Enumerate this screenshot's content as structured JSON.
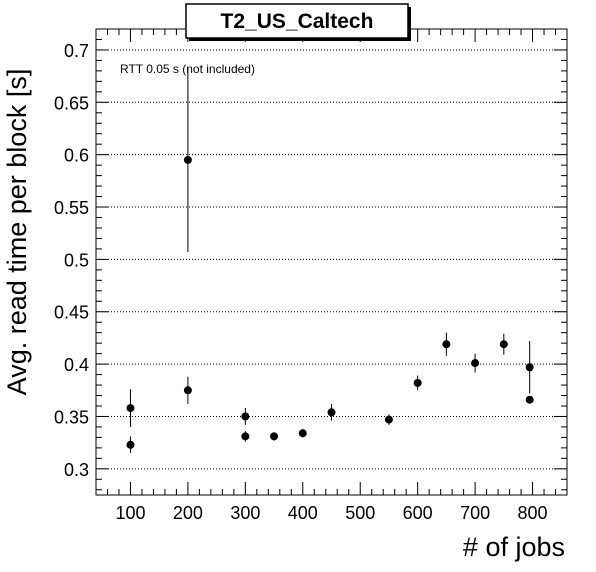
{
  "chart_data": {
    "type": "scatter",
    "title": "T2_US_Caltech",
    "xlabel": "# of jobs",
    "ylabel": "Avg. read time per block [s]",
    "annotation": "RTT 0.05 s (not included)",
    "xlim": [
      40,
      860
    ],
    "ylim": [
      0.275,
      0.72
    ],
    "x_ticks": [
      100,
      200,
      300,
      400,
      500,
      600,
      700,
      800
    ],
    "y_ticks": [
      0.3,
      0.35,
      0.4,
      0.45,
      0.5,
      0.55,
      0.6,
      0.65,
      0.7
    ],
    "grid": "horizontal dotted",
    "points": [
      {
        "x": 100,
        "y": 0.358,
        "err": 0.018
      },
      {
        "x": 100,
        "y": 0.323,
        "err": 0.008
      },
      {
        "x": 200,
        "y": 0.595,
        "err": 0.088
      },
      {
        "x": 200,
        "y": 0.375,
        "err": 0.013
      },
      {
        "x": 300,
        "y": 0.35,
        "err": 0.008
      },
      {
        "x": 300,
        "y": 0.331,
        "err": 0.005
      },
      {
        "x": 350,
        "y": 0.331,
        "err": 0.004
      },
      {
        "x": 400,
        "y": 0.334,
        "err": 0.004
      },
      {
        "x": 450,
        "y": 0.354,
        "err": 0.008
      },
      {
        "x": 550,
        "y": 0.347,
        "err": 0.005
      },
      {
        "x": 600,
        "y": 0.382,
        "err": 0.007
      },
      {
        "x": 650,
        "y": 0.419,
        "err": 0.011
      },
      {
        "x": 700,
        "y": 0.401,
        "err": 0.009
      },
      {
        "x": 750,
        "y": 0.419,
        "err": 0.01
      },
      {
        "x": 795,
        "y": 0.397,
        "err": 0.025
      },
      {
        "x": 795,
        "y": 0.366,
        "err": 0.0
      }
    ]
  }
}
